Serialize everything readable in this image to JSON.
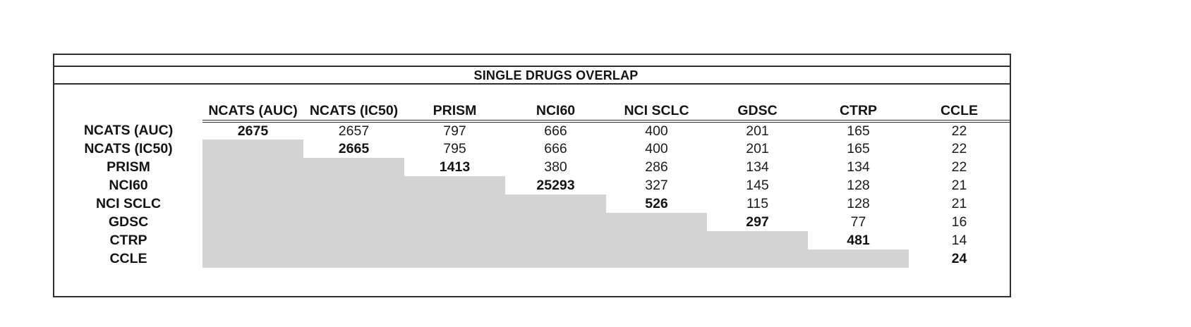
{
  "chart_data": {
    "type": "table",
    "title": "SINGLE DRUGS OVERLAP",
    "columns": [
      "NCATS (AUC)",
      "NCATS (IC50)",
      "PRISM",
      "NCI60",
      "NCI SCLC",
      "GDSC",
      "CTRP",
      "CCLE"
    ],
    "row_labels": [
      "NCATS (AUC)",
      "NCATS (IC50)",
      "PRISM",
      "NCI60",
      "NCI SCLC",
      "GDSC",
      "CTRP",
      "CCLE"
    ],
    "matrix": [
      [
        2675,
        2657,
        797,
        666,
        400,
        201,
        165,
        22
      ],
      [
        null,
        2665,
        795,
        666,
        400,
        201,
        165,
        22
      ],
      [
        null,
        null,
        1413,
        380,
        286,
        134,
        134,
        22
      ],
      [
        null,
        null,
        null,
        25293,
        327,
        145,
        128,
        21
      ],
      [
        null,
        null,
        null,
        null,
        526,
        115,
        128,
        21
      ],
      [
        null,
        null,
        null,
        null,
        null,
        297,
        77,
        16
      ],
      [
        null,
        null,
        null,
        null,
        null,
        null,
        481,
        14
      ],
      [
        null,
        null,
        null,
        null,
        null,
        null,
        null,
        24
      ]
    ],
    "layout_hints": {
      "diagonal_bold": true,
      "lower_triangle_shaded": true,
      "header_underline": "double"
    },
    "colors": {
      "shade": "#d3d3d3",
      "line": "#2f2f2f",
      "text": "#141414"
    }
  }
}
